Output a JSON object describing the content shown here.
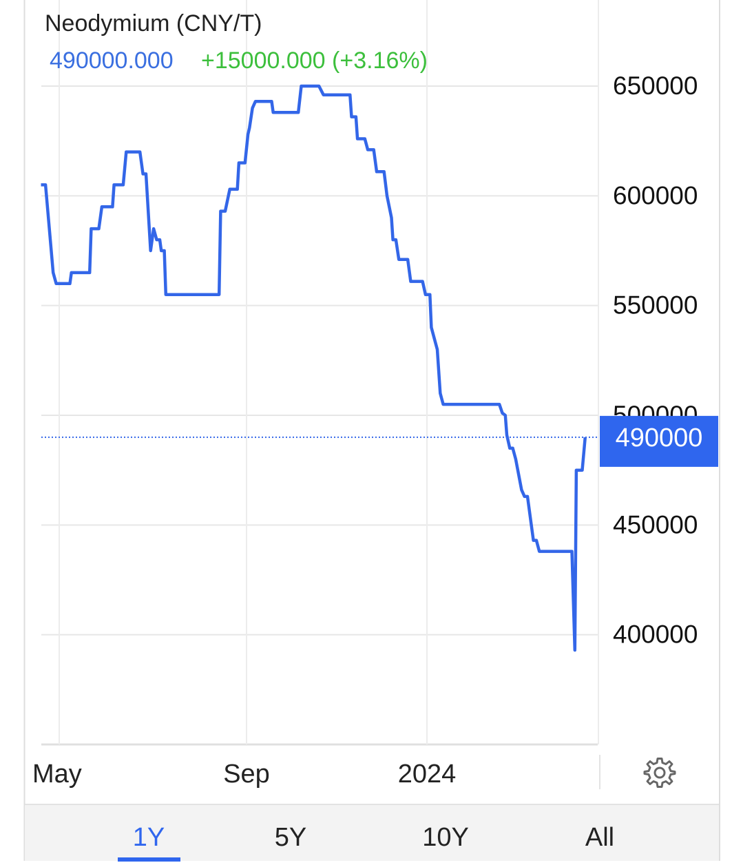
{
  "header": {
    "title": "Neodymium (CNY/T)",
    "price": "490000.000",
    "change": "+15000.000 (+3.16%)"
  },
  "colors": {
    "line": "#3366e8",
    "price": "#3a6fe0",
    "change": "#3cbf3c",
    "badge": "#2f66ee",
    "tab_active": "#2f66ee"
  },
  "chart_data": {
    "type": "line",
    "title": "Neodymium (CNY/T)",
    "xlabel": "",
    "ylabel": "",
    "x_ticks": [
      {
        "date": "2023-05-01",
        "label": "May"
      },
      {
        "date": "2023-09-01",
        "label": "Sep"
      },
      {
        "date": "2024-01-01",
        "label": "2024"
      }
    ],
    "y_ticks": [
      "650000",
      "600000",
      "550000",
      "500000",
      "450000",
      "400000"
    ],
    "ylim": [
      350000,
      650000
    ],
    "y_axis_position": "right",
    "grid": true,
    "current_value": 490000,
    "current_value_label": "490000",
    "series": [
      {
        "points": [
          [
            "2023-04-19",
            605000
          ],
          [
            "2023-04-22",
            605000
          ],
          [
            "2023-04-27",
            565000
          ],
          [
            "2023-04-29",
            560000
          ],
          [
            "2023-05-08",
            560000
          ],
          [
            "2023-05-09",
            565000
          ],
          [
            "2023-05-21",
            565000
          ],
          [
            "2023-05-22",
            585000
          ],
          [
            "2023-05-27",
            585000
          ],
          [
            "2023-05-29",
            595000
          ],
          [
            "2023-06-05",
            595000
          ],
          [
            "2023-06-06",
            605000
          ],
          [
            "2023-06-12",
            605000
          ],
          [
            "2023-06-14",
            620000
          ],
          [
            "2023-06-23",
            620000
          ],
          [
            "2023-06-25",
            610000
          ],
          [
            "2023-06-27",
            610000
          ],
          [
            "2023-06-30",
            575000
          ],
          [
            "2023-07-02",
            585000
          ],
          [
            "2023-07-04",
            580000
          ],
          [
            "2023-07-06",
            580000
          ],
          [
            "2023-07-07",
            575000
          ],
          [
            "2023-07-09",
            575000
          ],
          [
            "2023-07-10",
            555000
          ],
          [
            "2023-08-14",
            555000
          ],
          [
            "2023-08-15",
            593000
          ],
          [
            "2023-08-18",
            593000
          ],
          [
            "2023-08-21",
            603000
          ],
          [
            "2023-08-26",
            603000
          ],
          [
            "2023-08-27",
            615000
          ],
          [
            "2023-08-31",
            615000
          ],
          [
            "2023-09-02",
            628000
          ],
          [
            "2023-09-03",
            631000
          ],
          [
            "2023-09-05",
            640000
          ],
          [
            "2023-09-07",
            643000
          ],
          [
            "2023-09-18",
            643000
          ],
          [
            "2023-09-19",
            638000
          ],
          [
            "2023-10-06",
            638000
          ],
          [
            "2023-10-08",
            650000
          ],
          [
            "2023-10-20",
            650000
          ],
          [
            "2023-10-23",
            646000
          ],
          [
            "2023-11-10",
            646000
          ],
          [
            "2023-11-11",
            636000
          ],
          [
            "2023-11-14",
            636000
          ],
          [
            "2023-11-15",
            626000
          ],
          [
            "2023-11-20",
            626000
          ],
          [
            "2023-11-22",
            621000
          ],
          [
            "2023-11-26",
            621000
          ],
          [
            "2023-11-28",
            611000
          ],
          [
            "2023-12-03",
            611000
          ],
          [
            "2023-12-05",
            600000
          ],
          [
            "2023-12-08",
            590000
          ],
          [
            "2023-12-09",
            580000
          ],
          [
            "2023-12-11",
            580000
          ],
          [
            "2023-12-13",
            571000
          ],
          [
            "2023-12-19",
            571000
          ],
          [
            "2023-12-21",
            561000
          ],
          [
            "2023-12-29",
            561000
          ],
          [
            "2023-12-31",
            555000
          ],
          [
            "2024-01-03",
            555000
          ],
          [
            "2024-01-04",
            540000
          ],
          [
            "2024-01-06",
            535000
          ],
          [
            "2024-01-08",
            530000
          ],
          [
            "2024-01-10",
            510000
          ],
          [
            "2024-01-12",
            505000
          ],
          [
            "2024-02-19",
            505000
          ],
          [
            "2024-02-21",
            501000
          ],
          [
            "2024-02-23",
            500000
          ],
          [
            "2024-02-24",
            491000
          ],
          [
            "2024-02-26",
            485000
          ],
          [
            "2024-02-28",
            485000
          ],
          [
            "2024-03-01",
            480000
          ],
          [
            "2024-03-05",
            466000
          ],
          [
            "2024-03-07",
            463000
          ],
          [
            "2024-03-09",
            463000
          ],
          [
            "2024-03-11",
            453000
          ],
          [
            "2024-03-13",
            443000
          ],
          [
            "2024-03-15",
            443000
          ],
          [
            "2024-03-17",
            438000
          ],
          [
            "2024-04-08",
            438000
          ],
          [
            "2024-04-10",
            393000
          ],
          [
            "2024-04-11",
            475000
          ],
          [
            "2024-04-15",
            475000
          ],
          [
            "2024-04-17",
            490000
          ]
        ]
      }
    ]
  },
  "tabs": [
    {
      "label": "1Y",
      "active": true
    },
    {
      "label": "5Y"
    },
    {
      "label": "10Y"
    },
    {
      "label": "All"
    }
  ],
  "icons": {
    "settings": "gear-icon"
  }
}
